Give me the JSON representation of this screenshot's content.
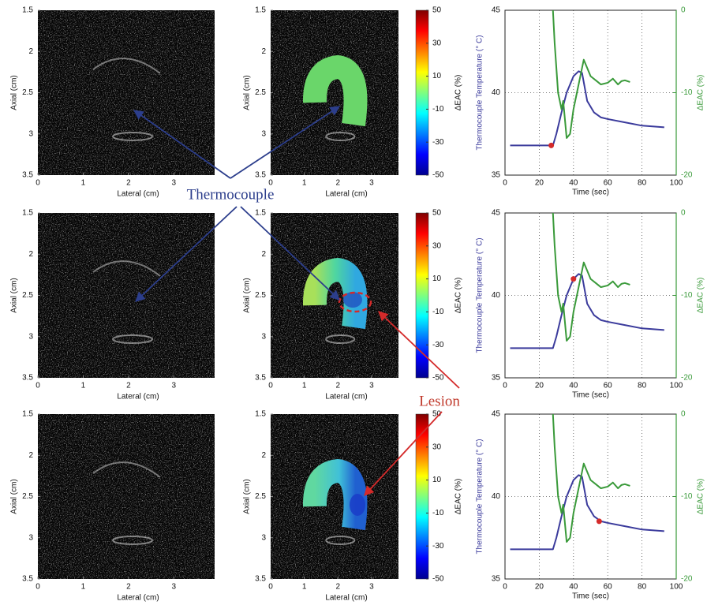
{
  "annotations": [
    "Thermocouple",
    "Lesion"
  ],
  "chart_data": [
    {
      "type": "image",
      "xlabel": "Lateral (cm)",
      "ylabel": "Axial (cm)",
      "xlim": [
        0,
        3.9
      ],
      "ylim": [
        3.5,
        1.5
      ],
      "xticks": [
        0,
        1,
        2,
        3
      ],
      "yticks": [
        1.5,
        2,
        2.5,
        3,
        3.5
      ]
    },
    {
      "type": "image",
      "xlabel": "Lateral (cm)",
      "ylabel": "Axial (cm)",
      "xlim": [
        0,
        3.8
      ],
      "ylim": [
        3.5,
        1.5
      ],
      "xticks": [
        0,
        1,
        2,
        3
      ],
      "yticks": [
        1.5,
        2,
        2.5,
        3,
        3.5
      ],
      "clabel": "ΔEAC (%)",
      "clim": [
        -50,
        50
      ],
      "cticks": [
        50,
        30,
        10,
        -10,
        -30,
        -50
      ]
    },
    {
      "type": "line",
      "xlabel": "Time (sec)",
      "ylabel": "Thermocouple Temperature (° C)",
      "y2label": "ΔEAC (%)",
      "xlim": [
        0,
        100
      ],
      "ylim": [
        35,
        45
      ],
      "y2lim": [
        -20,
        0
      ],
      "xticks": [
        0,
        20,
        40,
        60,
        80,
        100
      ],
      "yticks": [
        35,
        40,
        45
      ],
      "y2ticks": [
        -20,
        -10,
        0
      ],
      "grid": true,
      "series": [
        {
          "color": "#3b3b9c",
          "x": [
            3,
            28,
            30,
            33,
            36,
            40,
            43,
            45,
            48,
            52,
            56,
            60,
            70,
            80,
            93
          ],
          "values": [
            36.8,
            36.8,
            37.5,
            38.8,
            40.0,
            41.0,
            41.3,
            41.2,
            39.5,
            38.8,
            38.5,
            38.4,
            38.2,
            38.0,
            37.9
          ]
        },
        {
          "color": "#3a9a3a",
          "axis": "y2",
          "x": [
            28,
            29,
            31,
            33,
            34,
            36,
            38,
            40,
            42,
            44,
            46,
            48,
            50,
            53,
            56,
            60,
            63,
            66,
            68,
            70,
            73
          ],
          "values": [
            0,
            -4,
            -10,
            -12,
            -11,
            -15.5,
            -15,
            -12,
            -10,
            -8,
            -6,
            -7,
            -8,
            -8.5,
            -9,
            -8.8,
            -8.3,
            -9,
            -8.6,
            -8.5,
            -8.7
          ]
        }
      ],
      "marker": {
        "x": 27,
        "y": 36.8,
        "color": "#d42a2a"
      }
    },
    {
      "type": "image",
      "xlabel": "Lateral (cm)",
      "ylabel": "Axial (cm)",
      "xlim": [
        0,
        3.9
      ],
      "ylim": [
        3.5,
        1.5
      ],
      "xticks": [
        0,
        1,
        2,
        3
      ],
      "yticks": [
        1.5,
        2,
        2.5,
        3,
        3.5
      ]
    },
    {
      "type": "image",
      "xlabel": "Lateral (cm)",
      "ylabel": "Axial (cm)",
      "xlim": [
        0,
        3.8
      ],
      "ylim": [
        3.5,
        1.5
      ],
      "xticks": [
        0,
        1,
        2,
        3
      ],
      "yticks": [
        1.5,
        2,
        2.5,
        3,
        3.5
      ],
      "clabel": "ΔEAC (%)",
      "clim": [
        -50,
        50
      ],
      "cticks": [
        50,
        30,
        10,
        -10,
        -30,
        -50
      ]
    },
    {
      "type": "line",
      "xlabel": "Time (sec)",
      "ylabel": "Thermocouple Temperature (° C)",
      "y2label": "ΔEAC (%)",
      "xlim": [
        0,
        100
      ],
      "ylim": [
        35,
        45
      ],
      "y2lim": [
        -20,
        0
      ],
      "xticks": [
        0,
        20,
        40,
        60,
        80,
        100
      ],
      "yticks": [
        35,
        40,
        45
      ],
      "y2ticks": [
        -20,
        -10,
        0
      ],
      "grid": true,
      "series": [
        {
          "color": "#3b3b9c",
          "x": [
            3,
            28,
            30,
            33,
            36,
            40,
            43,
            45,
            48,
            52,
            56,
            60,
            70,
            80,
            93
          ],
          "values": [
            36.8,
            36.8,
            37.5,
            38.8,
            40.0,
            41.0,
            41.3,
            41.2,
            39.5,
            38.8,
            38.5,
            38.4,
            38.2,
            38.0,
            37.9
          ]
        },
        {
          "color": "#3a9a3a",
          "axis": "y2",
          "x": [
            28,
            29,
            31,
            33,
            34,
            36,
            38,
            40,
            42,
            44,
            46,
            48,
            50,
            53,
            56,
            60,
            63,
            66,
            68,
            70,
            73
          ],
          "values": [
            0,
            -4,
            -10,
            -12,
            -11,
            -15.5,
            -15,
            -12,
            -10,
            -8,
            -6,
            -7,
            -8,
            -8.5,
            -9,
            -8.8,
            -8.3,
            -9,
            -8.6,
            -8.5,
            -8.7
          ]
        }
      ],
      "marker": {
        "x": 40,
        "y": 41.0,
        "color": "#d42a2a"
      }
    },
    {
      "type": "image",
      "xlabel": "Lateral (cm)",
      "ylabel": "Axial (cm)",
      "xlim": [
        0,
        3.9
      ],
      "ylim": [
        3.5,
        1.5
      ],
      "xticks": [
        0,
        1,
        2,
        3
      ],
      "yticks": [
        1.5,
        2,
        2.5,
        3,
        3.5
      ]
    },
    {
      "type": "image",
      "xlabel": "Lateral (cm)",
      "ylabel": "Axial (cm)",
      "xlim": [
        0,
        3.8
      ],
      "ylim": [
        3.5,
        1.5
      ],
      "xticks": [
        0,
        1,
        2,
        3
      ],
      "yticks": [
        1.5,
        2,
        2.5,
        3,
        3.5
      ],
      "clabel": "ΔEAC (%)",
      "clim": [
        -50,
        50
      ],
      "cticks": [
        50,
        30,
        10,
        -10,
        -30,
        -50
      ]
    },
    {
      "type": "line",
      "xlabel": "Time (sec)",
      "ylabel": "Thermocouple Temperature (° C)",
      "y2label": "ΔEAC (%)",
      "xlim": [
        0,
        100
      ],
      "ylim": [
        35,
        45
      ],
      "y2lim": [
        -20,
        0
      ],
      "xticks": [
        0,
        20,
        40,
        60,
        80,
        100
      ],
      "yticks": [
        35,
        40,
        45
      ],
      "y2ticks": [
        -20,
        -10,
        0
      ],
      "grid": true,
      "series": [
        {
          "color": "#3b3b9c",
          "x": [
            3,
            28,
            30,
            33,
            36,
            40,
            43,
            45,
            48,
            52,
            56,
            60,
            70,
            80,
            93
          ],
          "values": [
            36.8,
            36.8,
            37.5,
            38.8,
            40.0,
            41.0,
            41.3,
            41.2,
            39.5,
            38.8,
            38.5,
            38.4,
            38.2,
            38.0,
            37.9
          ]
        },
        {
          "color": "#3a9a3a",
          "axis": "y2",
          "x": [
            28,
            29,
            31,
            33,
            34,
            36,
            38,
            40,
            42,
            44,
            46,
            48,
            50,
            53,
            56,
            60,
            63,
            66,
            68,
            70,
            73
          ],
          "values": [
            0,
            -4,
            -10,
            -12,
            -11,
            -15.5,
            -15,
            -12,
            -10,
            -8,
            -6,
            -7,
            -8,
            -8.5,
            -9,
            -8.8,
            -8.3,
            -9,
            -8.6,
            -8.5,
            -8.7
          ]
        }
      ],
      "marker": {
        "x": 55,
        "y": 38.5,
        "color": "#d42a2a"
      }
    }
  ]
}
